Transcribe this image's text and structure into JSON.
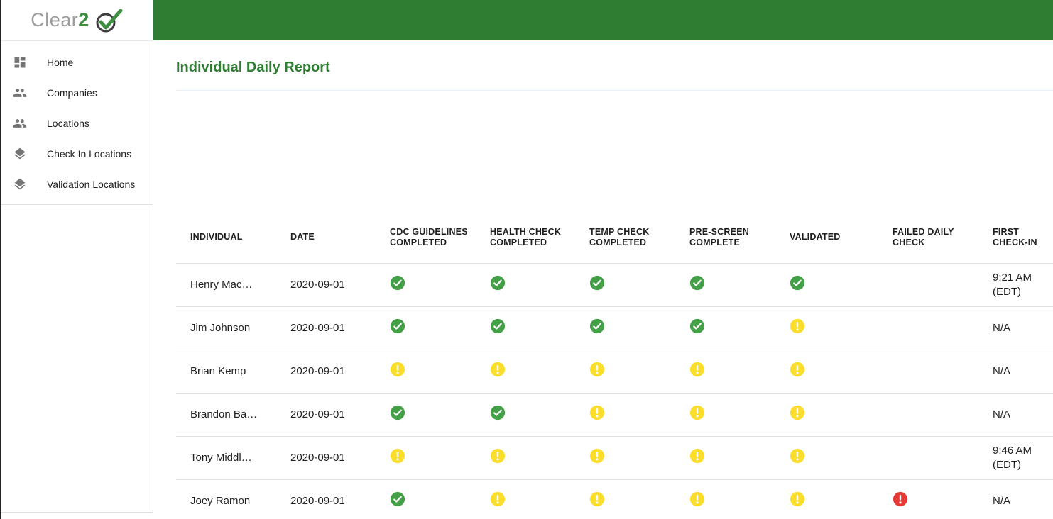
{
  "brand": {
    "name_gray": "Clear",
    "name_accent": "2"
  },
  "sidebar": {
    "items": [
      {
        "label": "Home",
        "icon": "dashboard"
      },
      {
        "label": "Companies",
        "icon": "people"
      },
      {
        "label": "Locations",
        "icon": "people"
      },
      {
        "label": "Check In Locations",
        "icon": "layers"
      },
      {
        "label": "Validation Locations",
        "icon": "layers"
      }
    ]
  },
  "page": {
    "title": "Individual Daily Report"
  },
  "report_table": {
    "columns": [
      "INDIVIDUAL",
      "DATE",
      "CDC GUIDELINES COMPLETED",
      "HEALTH CHECK COMPLETED",
      "TEMP CHECK COMPLETED",
      "PRE-SCREEN COMPLETE",
      "VALIDATED",
      "FAILED DAILY CHECK",
      "FIRST CHECK-IN"
    ],
    "rows": [
      {
        "individual": "Henry Mac…",
        "date": "2020-09-01",
        "cdc_guidelines": "pass",
        "health_check": "pass",
        "temp_check": "pass",
        "pre_screen": "pass",
        "validated": "pass",
        "failed_daily_check": "none",
        "first_check_in": "9:21 AM (EDT)"
      },
      {
        "individual": "Jim Johnson",
        "date": "2020-09-01",
        "cdc_guidelines": "pass",
        "health_check": "pass",
        "temp_check": "pass",
        "pre_screen": "pass",
        "validated": "warning",
        "failed_daily_check": "none",
        "first_check_in": "N/A"
      },
      {
        "individual": "Brian Kemp",
        "date": "2020-09-01",
        "cdc_guidelines": "warning",
        "health_check": "warning",
        "temp_check": "warning",
        "pre_screen": "warning",
        "validated": "warning",
        "failed_daily_check": "none",
        "first_check_in": "N/A"
      },
      {
        "individual": "Brandon Ba…",
        "date": "2020-09-01",
        "cdc_guidelines": "pass",
        "health_check": "pass",
        "temp_check": "warning",
        "pre_screen": "warning",
        "validated": "warning",
        "failed_daily_check": "none",
        "first_check_in": "N/A"
      },
      {
        "individual": "Tony Middl…",
        "date": "2020-09-01",
        "cdc_guidelines": "warning",
        "health_check": "warning",
        "temp_check": "warning",
        "pre_screen": "warning",
        "validated": "warning",
        "failed_daily_check": "none",
        "first_check_in": "9:46 AM (EDT)"
      },
      {
        "individual": "Joey Ramon",
        "date": "2020-09-01",
        "cdc_guidelines": "pass",
        "health_check": "warning",
        "temp_check": "warning",
        "pre_screen": "warning",
        "validated": "warning",
        "failed_daily_check": "fail",
        "first_check_in": "N/A"
      }
    ]
  },
  "colors": {
    "topbar_green": "#2e7d32",
    "title_green": "#2e7d32",
    "pass_green": "#43a047",
    "warning_yellow": "#fbdd2c",
    "fail_red": "#e53935"
  }
}
